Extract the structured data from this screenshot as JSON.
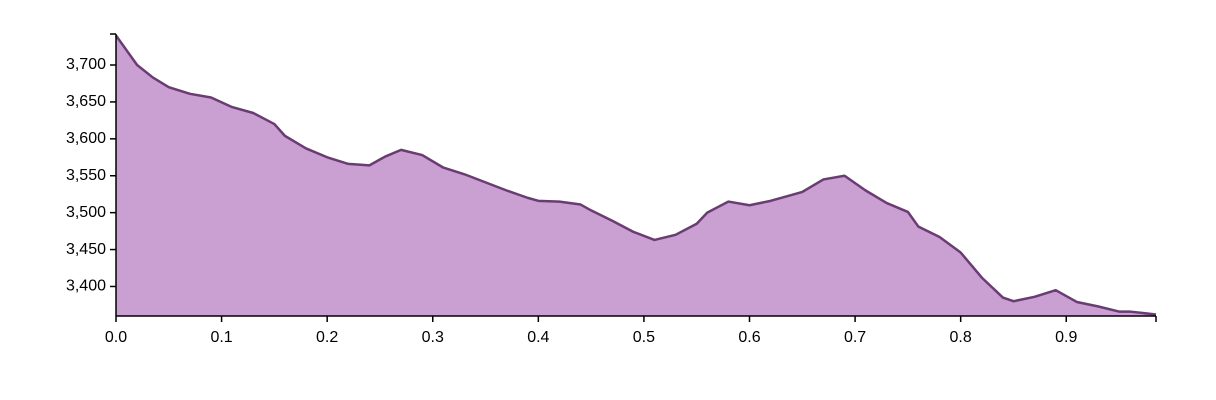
{
  "chart_data": {
    "type": "area",
    "title": "",
    "xlabel": "",
    "ylabel": "",
    "xlim": [
      0,
      0.985
    ],
    "ylim": [
      3360,
      3742
    ],
    "x_ticks": [
      0.0,
      0.1,
      0.2,
      0.3,
      0.4,
      0.5,
      0.6,
      0.7,
      0.8,
      0.9
    ],
    "x_tick_labels": [
      "0.0",
      "0.1",
      "0.2",
      "0.3",
      "0.4",
      "0.5",
      "0.6",
      "0.7",
      "0.8",
      "0.9"
    ],
    "y_ticks": [
      3400,
      3450,
      3500,
      3550,
      3600,
      3650,
      3700
    ],
    "y_tick_labels": [
      "3,400",
      "3,450",
      "3,500",
      "3,550",
      "3,600",
      "3,650",
      "3,700"
    ],
    "grid": false,
    "colors": {
      "fill": "#c9a0d1",
      "stroke": "#6b3b74"
    },
    "series": [
      {
        "x": [
          0.0,
          0.02,
          0.035,
          0.05,
          0.07,
          0.09,
          0.11,
          0.13,
          0.15,
          0.16,
          0.18,
          0.2,
          0.22,
          0.24,
          0.255,
          0.27,
          0.29,
          0.31,
          0.33,
          0.35,
          0.37,
          0.39,
          0.4,
          0.42,
          0.44,
          0.45,
          0.47,
          0.49,
          0.51,
          0.53,
          0.55,
          0.56,
          0.58,
          0.6,
          0.62,
          0.64,
          0.65,
          0.67,
          0.69,
          0.71,
          0.73,
          0.75,
          0.76,
          0.78,
          0.8,
          0.82,
          0.84,
          0.85,
          0.87,
          0.89,
          0.91,
          0.93,
          0.95,
          0.96,
          0.985
        ],
        "y": [
          3740,
          3700,
          3683,
          3670,
          3661,
          3656,
          3643,
          3635,
          3620,
          3604,
          3587,
          3575,
          3566,
          3564,
          3576,
          3585,
          3578,
          3561,
          3552,
          3541,
          3530,
          3520,
          3516,
          3515,
          3511,
          3503,
          3489,
          3474,
          3463,
          3470,
          3485,
          3500,
          3515,
          3510,
          3516,
          3524,
          3528,
          3545,
          3550,
          3530,
          3513,
          3501,
          3481,
          3467,
          3446,
          3412,
          3385,
          3380,
          3386,
          3395,
          3379,
          3373,
          3366,
          3366,
          3362
        ]
      }
    ]
  }
}
